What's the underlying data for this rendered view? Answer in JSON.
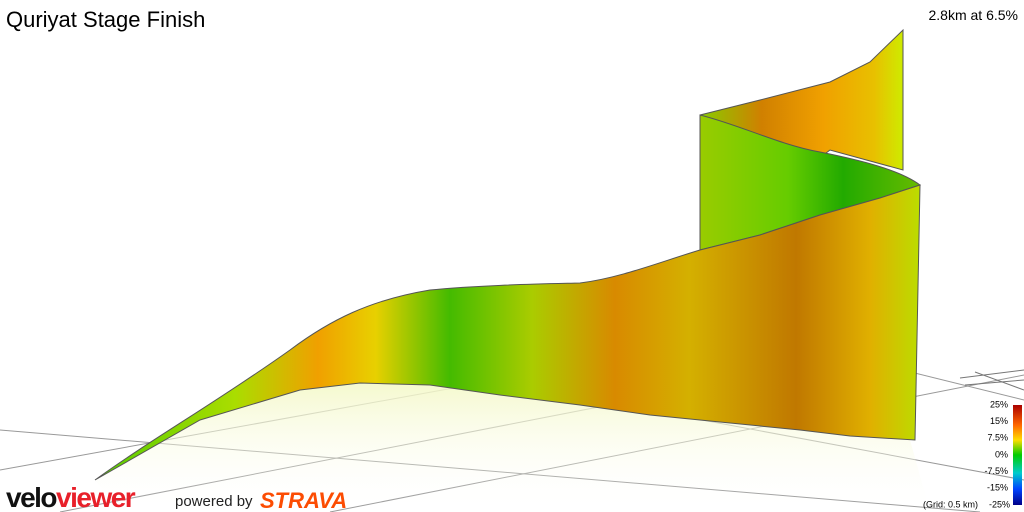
{
  "header": {
    "title": "Quriyat Stage Finish",
    "info": "2.8km at 6.5%"
  },
  "legend": {
    "labels": [
      "25%",
      "15%",
      "7.5%",
      "0%",
      "-7.5%",
      "-15%",
      "-25%"
    ],
    "grid_note": "(Grid: 0.5 km)"
  },
  "footer": {
    "brand_a": "velo",
    "brand_b": "viewer",
    "powered": "powered by",
    "partner": "STRAVA"
  }
}
